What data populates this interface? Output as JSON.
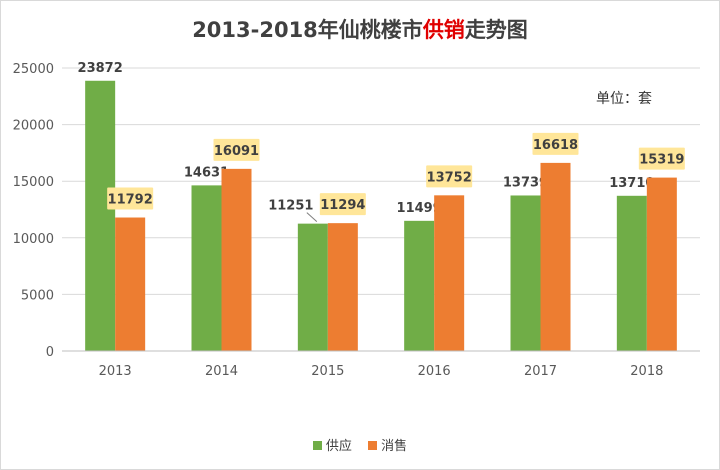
{
  "title": {
    "prefix": "2013-2018年仙桃楼市",
    "highlight": "供销",
    "suffix": "走势图"
  },
  "unit_label": "单位：套",
  "colors": {
    "supply": "#70ad47",
    "sales": "#ed7d31",
    "label_box": "#ffe699",
    "highlight": "#e00000"
  },
  "chart_data": {
    "type": "bar",
    "title": "2013-2018年仙桃楼市供销走势图",
    "categories": [
      "2013",
      "2014",
      "2015",
      "2016",
      "2017",
      "2018"
    ],
    "series": [
      {
        "name": "供应",
        "values": [
          23872,
          14631,
          11251,
          11499,
          13739,
          13710
        ]
      },
      {
        "name": "消售",
        "values": [
          11792,
          16091,
          11294,
          13752,
          16618,
          15319
        ]
      }
    ],
    "yticks": [
      "0",
      "5000",
      "10000",
      "15000",
      "20000",
      "25000"
    ],
    "ylim": [
      0,
      25000
    ],
    "xlabel": "",
    "ylabel": "",
    "grid": true,
    "legend": "bottom"
  }
}
